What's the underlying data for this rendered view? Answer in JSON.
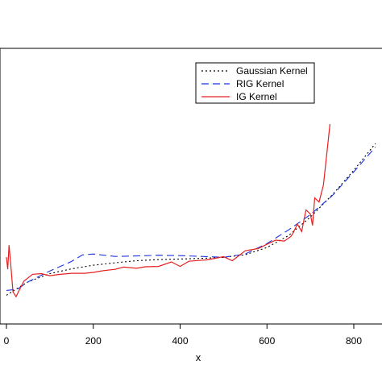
{
  "chart_data": {
    "type": "line",
    "title": "",
    "xlabel": "x",
    "ylabel": "",
    "xlim": [
      -15,
      860
    ],
    "ylim": [
      0,
      100
    ],
    "xticks": [
      0,
      200,
      400,
      600,
      800
    ],
    "grid": false,
    "legend": {
      "placement": "top-right",
      "boxed": true
    },
    "series": [
      {
        "name": "Gaussian Kernel",
        "color": "#000000",
        "dash": "dotted",
        "x": [
          0,
          25,
          50,
          100,
          150,
          200,
          250,
          300,
          350,
          400,
          450,
          500,
          550,
          600,
          650,
          700,
          750,
          800,
          850
        ],
        "y": [
          0.3,
          4.3,
          8.1,
          12.9,
          15.7,
          17.8,
          19.2,
          20.4,
          21.1,
          21.4,
          21.8,
          22.4,
          23.9,
          28.1,
          35.1,
          45.8,
          58.7,
          73.1,
          88.7
        ]
      },
      {
        "name": "RIG Kernel",
        "color": "#1a33e6",
        "dash": "dashed",
        "x": [
          0,
          25,
          50,
          100,
          150,
          175,
          200,
          250,
          300,
          350,
          400,
          450,
          500,
          550,
          600,
          650,
          700,
          750,
          800,
          850
        ],
        "y": [
          3.1,
          3.8,
          8.1,
          14.4,
          20.0,
          23.8,
          24.3,
          22.9,
          23.2,
          23.6,
          23.4,
          22.9,
          22.4,
          24.3,
          30.4,
          38.4,
          47.3,
          58.2,
          72.2,
          86.6
        ]
      },
      {
        "name": "IG Kernel",
        "color": "#e62020",
        "dash": "solid",
        "x": [
          0,
          3,
          6,
          10,
          15,
          22,
          30,
          40,
          60,
          80,
          100,
          120,
          150,
          180,
          200,
          220,
          250,
          270,
          300,
          320,
          350,
          380,
          400,
          420,
          440,
          460,
          480,
          500,
          520,
          550,
          580,
          600,
          620,
          640,
          655,
          660,
          670,
          680,
          690,
          700,
          705,
          710,
          720,
          730,
          740,
          745
        ],
        "y": [
          22.5,
          15.5,
          29.5,
          17.8,
          2.3,
          -0.5,
          3.5,
          8.5,
          12.5,
          12.9,
          11.7,
          12.4,
          13.1,
          13.1,
          13.6,
          14.5,
          15.4,
          16.7,
          16.0,
          16.9,
          17.1,
          19.7,
          17.1,
          20.1,
          20.5,
          20.9,
          21.8,
          22.8,
          20.4,
          26.2,
          27.5,
          30.0,
          32.4,
          31.9,
          34.5,
          36.5,
          41.8,
          37.4,
          50.0,
          47.6,
          41.0,
          57.0,
          54.6,
          64.4,
          88.0,
          100
        ]
      }
    ]
  }
}
